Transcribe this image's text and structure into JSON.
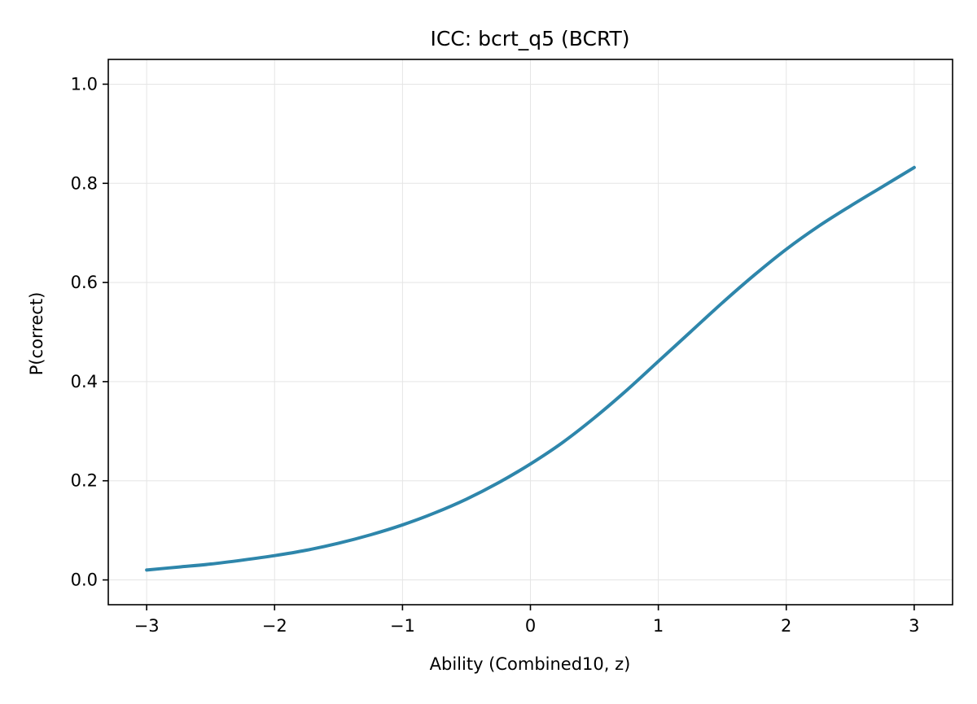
{
  "chart_data": {
    "type": "line",
    "title": "ICC: bcrt_q5 (BCRT)",
    "xlabel": "Ability (Combined10, z)",
    "ylabel": "P(correct)",
    "xlim": [
      -3.3,
      3.3
    ],
    "ylim": [
      -0.05,
      1.05
    ],
    "grid": true,
    "line_color": "#2e86ab",
    "x_ticks": [
      -3,
      -2,
      -1,
      0,
      1,
      2,
      3
    ],
    "x_tick_labels": [
      "−3",
      "−2",
      "−1",
      "0",
      "1",
      "2",
      "3"
    ],
    "y_ticks": [
      0.0,
      0.2,
      0.4,
      0.6,
      0.8,
      1.0
    ],
    "y_tick_labels": [
      "0.0",
      "0.2",
      "0.4",
      "0.6",
      "0.8",
      "1.0"
    ],
    "series": [
      {
        "x": [
          -3.0,
          -2.75,
          -2.5,
          -2.25,
          -2.0,
          -1.75,
          -1.5,
          -1.25,
          -1.0,
          -0.75,
          -0.5,
          -0.25,
          0.0,
          0.25,
          0.5,
          0.75,
          1.0,
          1.25,
          1.5,
          1.75,
          2.0,
          2.25,
          2.5,
          2.75,
          3.0
        ],
        "values": [
          0.02,
          0.026,
          0.032,
          0.04,
          0.049,
          0.06,
          0.074,
          0.091,
          0.111,
          0.135,
          0.163,
          0.196,
          0.234,
          0.277,
          0.327,
          0.382,
          0.441,
          0.5,
          0.559,
          0.615,
          0.667,
          0.713,
          0.754,
          0.793,
          0.832
        ]
      }
    ]
  }
}
